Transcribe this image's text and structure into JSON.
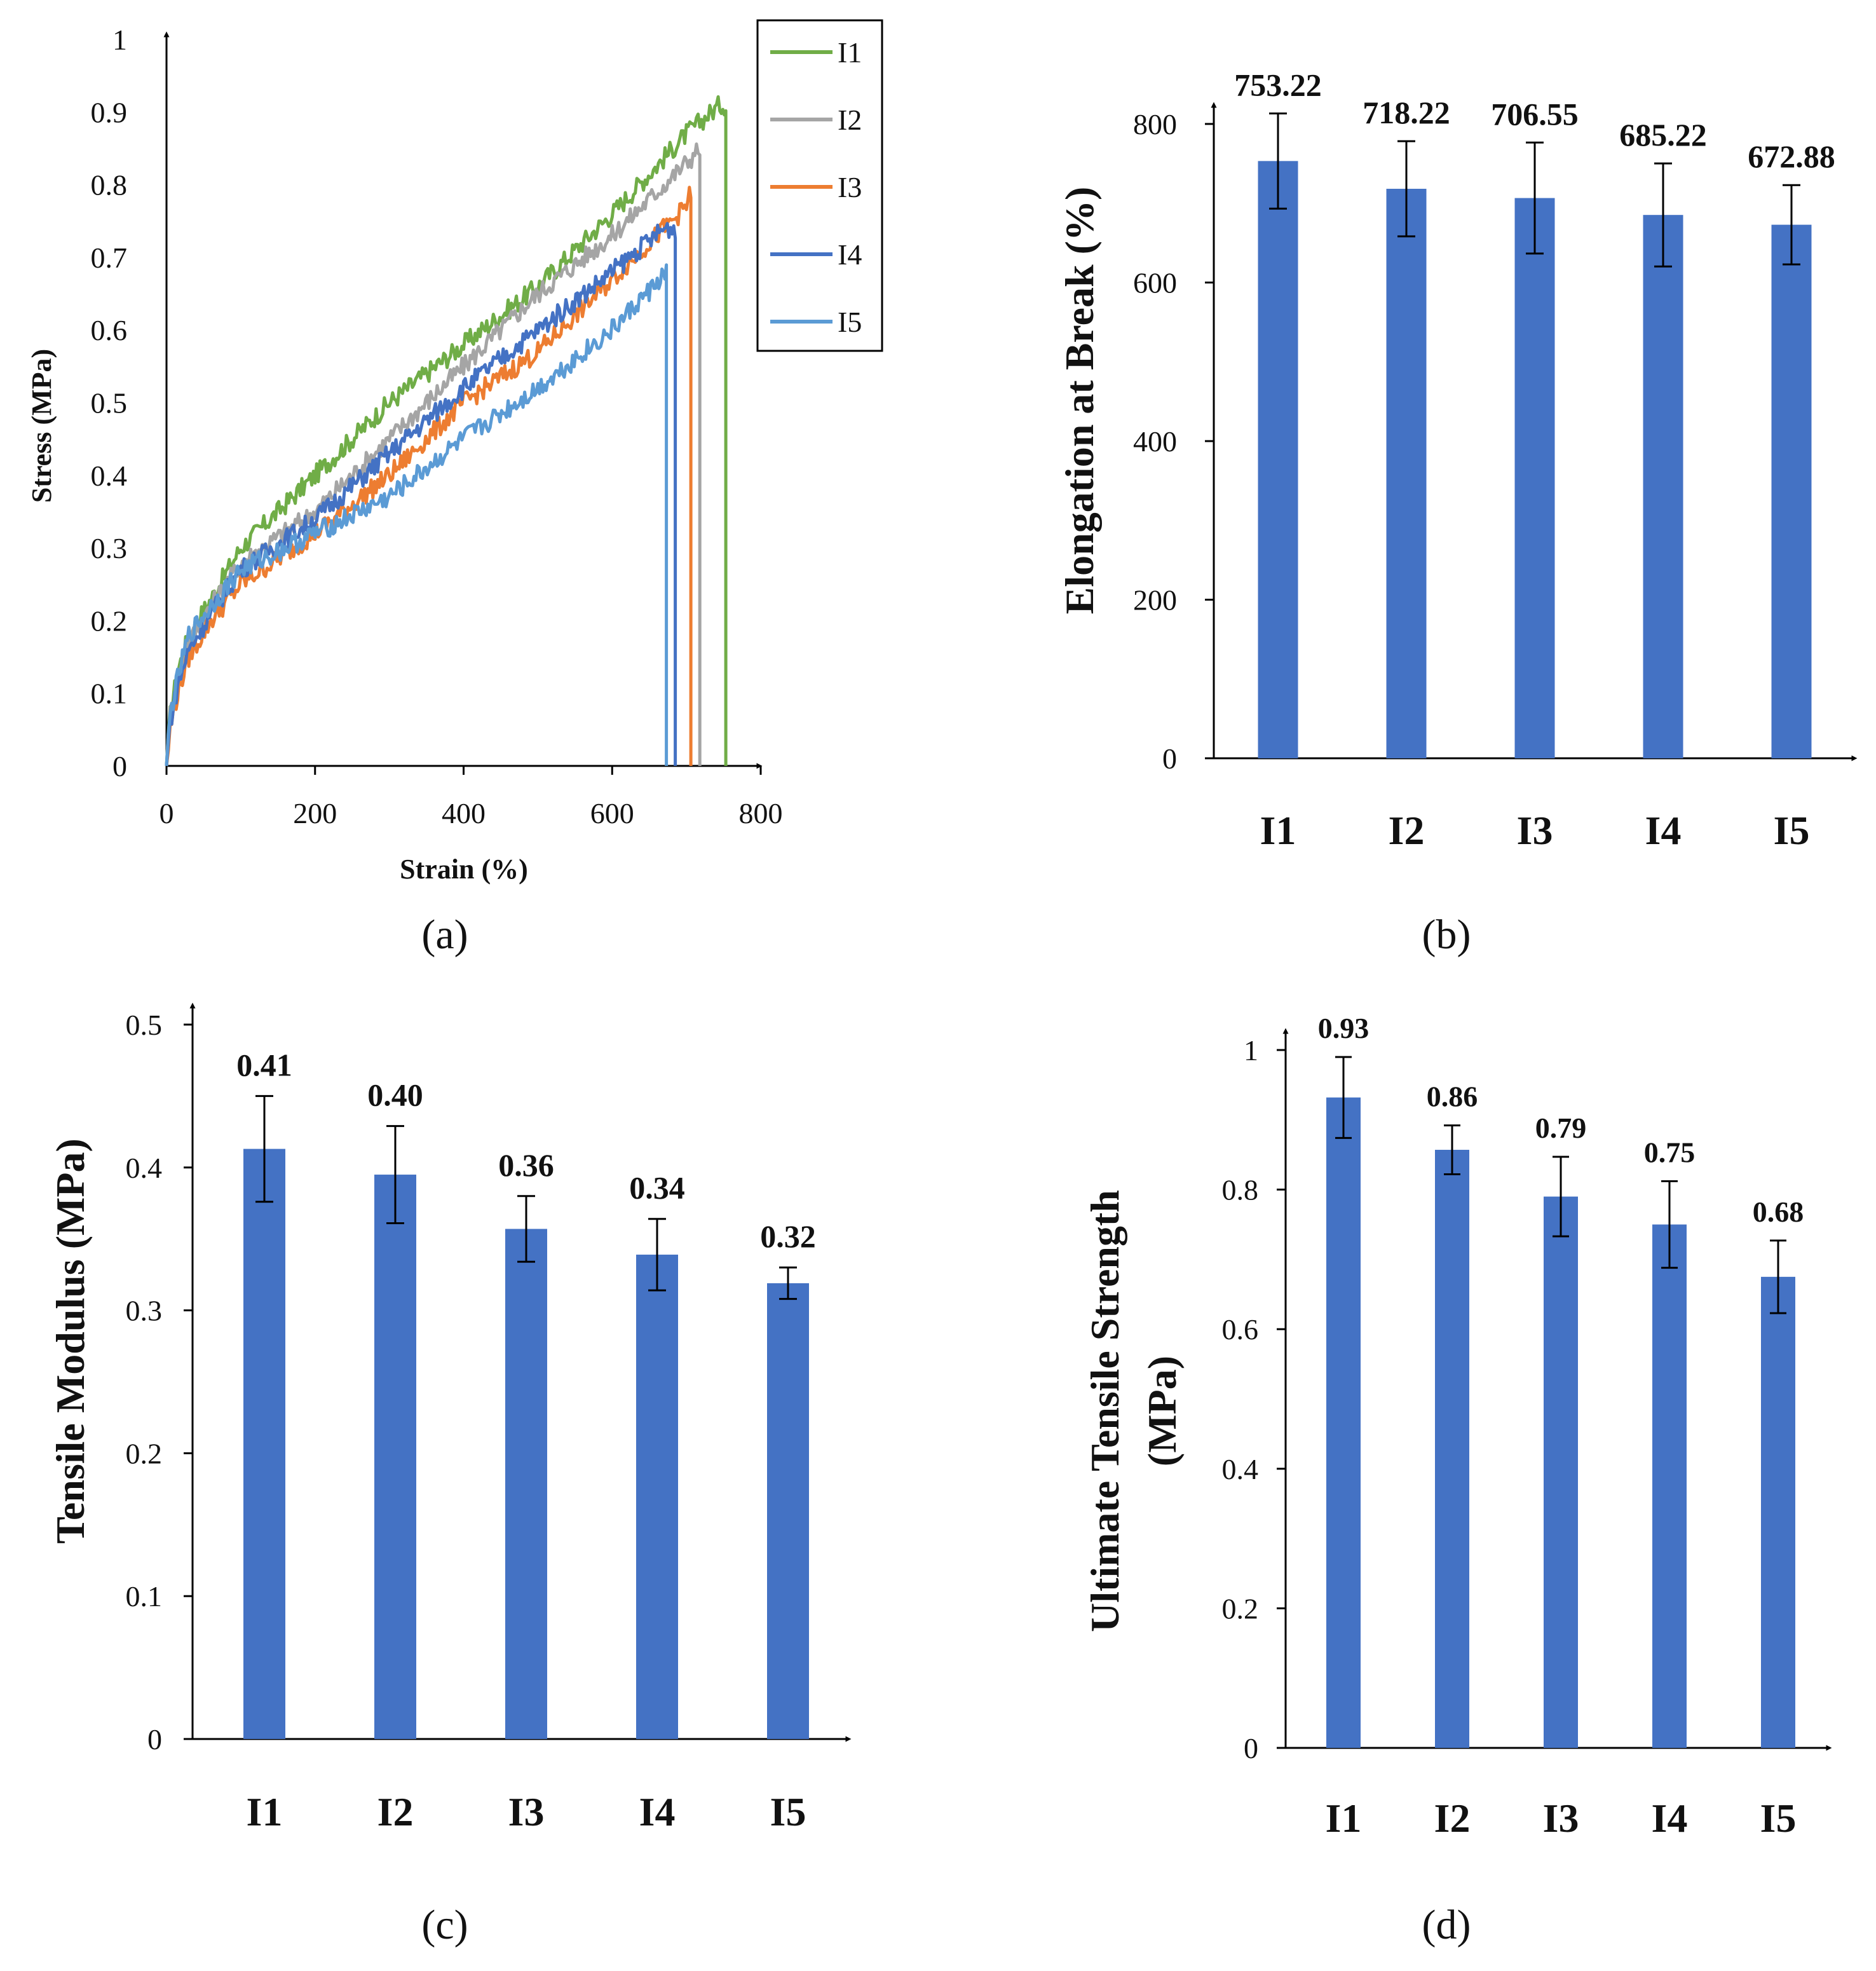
{
  "chart_data": [
    {
      "id": "a",
      "panel_label": "(a)",
      "type": "line",
      "xlabel": "Strain (%)",
      "ylabel": "Stress (MPa)",
      "xlim": [
        0,
        800
      ],
      "ylim": [
        0,
        1
      ],
      "x_ticks": [
        "0",
        "200",
        "400",
        "600",
        "800"
      ],
      "y_ticks": [
        "0",
        "0.1",
        "0.2",
        "0.3",
        "0.4",
        "0.5",
        "0.6",
        "0.7",
        "0.8",
        "0.9",
        "1"
      ],
      "legend_position": "top-right",
      "series": [
        {
          "name": "I1",
          "color": "#70AD47",
          "x": [
            0,
            5,
            15,
            30,
            60,
            100,
            200,
            300,
            400,
            500,
            600,
            700,
            745,
            753,
            753
          ],
          "y": [
            0,
            0.07,
            0.13,
            0.18,
            0.23,
            0.3,
            0.4,
            0.5,
            0.58,
            0.66,
            0.76,
            0.87,
            0.91,
            0.91,
            0
          ]
        },
        {
          "name": "I2",
          "color": "#A5A5A5",
          "x": [
            0,
            5,
            15,
            30,
            60,
            100,
            200,
            300,
            400,
            500,
            600,
            700,
            718,
            718
          ],
          "y": [
            0,
            0.07,
            0.12,
            0.17,
            0.22,
            0.28,
            0.35,
            0.45,
            0.55,
            0.65,
            0.73,
            0.83,
            0.85,
            0
          ]
        },
        {
          "name": "I3",
          "color": "#ED7D31",
          "x": [
            0,
            5,
            15,
            30,
            60,
            100,
            200,
            300,
            400,
            500,
            600,
            700,
            706,
            706
          ],
          "y": [
            0,
            0.05,
            0.1,
            0.15,
            0.2,
            0.25,
            0.32,
            0.4,
            0.5,
            0.57,
            0.67,
            0.77,
            0.79,
            0
          ]
        },
        {
          "name": "I4",
          "color": "#4472C4",
          "x": [
            0,
            5,
            15,
            30,
            60,
            100,
            200,
            300,
            400,
            500,
            600,
            670,
            685,
            685
          ],
          "y": [
            0,
            0.06,
            0.11,
            0.16,
            0.21,
            0.27,
            0.34,
            0.43,
            0.52,
            0.6,
            0.68,
            0.74,
            0.74,
            0
          ]
        },
        {
          "name": "I5",
          "color": "#5B9BD5",
          "x": [
            0,
            5,
            15,
            30,
            60,
            100,
            200,
            300,
            400,
            500,
            600,
            665,
            673,
            673
          ],
          "y": [
            0,
            0.07,
            0.12,
            0.18,
            0.22,
            0.27,
            0.32,
            0.37,
            0.45,
            0.52,
            0.6,
            0.67,
            0.68,
            0
          ]
        }
      ]
    },
    {
      "id": "b",
      "panel_label": "(b)",
      "type": "bar",
      "ylabel": "Elongation at Break (%)",
      "ylim": [
        0,
        800
      ],
      "y_ticks": [
        "0",
        "200",
        "400",
        "600",
        "800"
      ],
      "categories": [
        "I1",
        "I2",
        "I3",
        "I4",
        "I5"
      ],
      "values": [
        753.22,
        718.22,
        706.55,
        685.22,
        672.88
      ],
      "errors": [
        60,
        60,
        70,
        65,
        50
      ],
      "labels": [
        "753.22",
        "718.22",
        "706.55",
        "685.22",
        "672.88"
      ],
      "color": "#4472C4"
    },
    {
      "id": "c",
      "panel_label": "(c)",
      "type": "bar",
      "ylabel": "Tensile Modulus (MPa)",
      "ylim": [
        0,
        0.5
      ],
      "y_ticks": [
        "0",
        "0.1",
        "0.2",
        "0.3",
        "0.4",
        "0.5"
      ],
      "categories": [
        "I1",
        "I2",
        "I3",
        "I4",
        "I5"
      ],
      "values": [
        0.413,
        0.395,
        0.357,
        0.339,
        0.319
      ],
      "errors": [
        0.037,
        0.034,
        0.023,
        0.025,
        0.011
      ],
      "labels": [
        "0.41",
        "0.40",
        "0.36",
        "0.34",
        "0.32"
      ],
      "color": "#4472C4"
    },
    {
      "id": "d",
      "panel_label": "(d)",
      "type": "bar",
      "ylabel": [
        "Ultimate Tensile Strength",
        "(MPa)"
      ],
      "ylim": [
        0,
        1
      ],
      "y_ticks": [
        "0",
        "0.2",
        "0.4",
        "0.6",
        "0.8",
        "1"
      ],
      "categories": [
        "I1",
        "I2",
        "I3",
        "I4",
        "I5"
      ],
      "values": [
        0.932,
        0.857,
        0.79,
        0.75,
        0.675
      ],
      "errors": [
        0.058,
        0.035,
        0.057,
        0.062,
        0.052
      ],
      "labels": [
        "0.93",
        "0.86",
        "0.79",
        "0.75",
        "0.68"
      ],
      "color": "#4472C4"
    }
  ]
}
